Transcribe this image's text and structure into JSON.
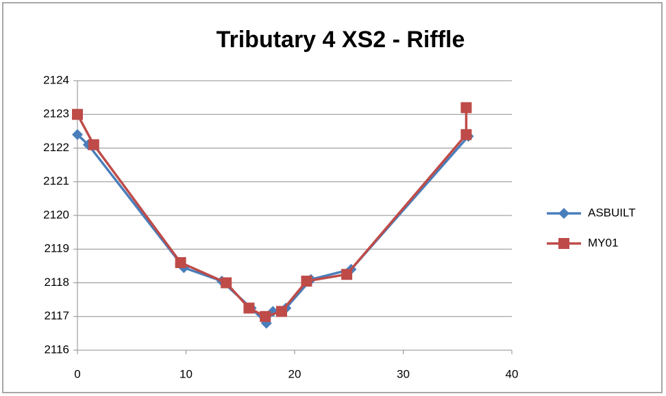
{
  "chart_data": {
    "type": "scatter",
    "title": "Tributary 4 XS2 - Riffle",
    "series": [
      {
        "name": "ASBUILT",
        "color": "#4a7ebb",
        "marker": "diamond",
        "x": [
          0,
          1,
          9.8,
          13.3,
          16,
          17.4,
          18,
          19.2,
          21.5,
          25.2,
          36
        ],
        "values": [
          2122.4,
          2122.1,
          2118.45,
          2118.05,
          2117.25,
          2116.8,
          2117.15,
          2117.25,
          2118.1,
          2118.4,
          2122.35
        ]
      },
      {
        "name": "MY01",
        "color": "#be4b48",
        "marker": "square",
        "x": [
          0,
          1.5,
          9.5,
          13.7,
          15.8,
          17.3,
          18.8,
          21.1,
          24.8,
          35.8,
          35.8
        ],
        "values": [
          2123.0,
          2122.1,
          2118.6,
          2118.0,
          2117.25,
          2117.0,
          2117.15,
          2118.05,
          2118.25,
          2122.4,
          2123.2
        ]
      }
    ],
    "xlim": [
      0,
      40
    ],
    "xticks": [
      0,
      10,
      20,
      30,
      40
    ],
    "ylim": [
      2116,
      2124
    ],
    "yticks": [
      2116,
      2117,
      2118,
      2119,
      2120,
      2121,
      2122,
      2123,
      2124
    ],
    "grid": true,
    "legend": "right"
  }
}
